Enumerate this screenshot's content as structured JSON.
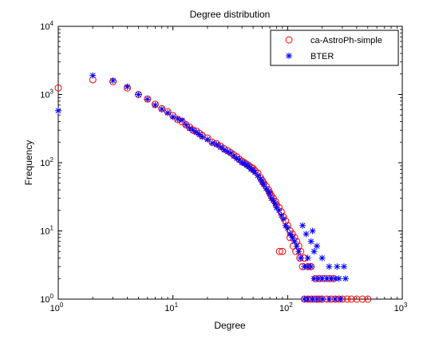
{
  "chart_data": {
    "type": "scatter",
    "title": "Degree distribution",
    "xlabel": "Degree",
    "ylabel": "Frequency",
    "xscale": "log",
    "yscale": "log",
    "xlim": [
      1,
      1000
    ],
    "ylim": [
      1,
      10000
    ],
    "grid": false,
    "legend_position": "top-right",
    "x_ticks": [
      {
        "base": "10",
        "exp": "0",
        "value": 1
      },
      {
        "base": "10",
        "exp": "1",
        "value": 10
      },
      {
        "base": "10",
        "exp": "2",
        "value": 100
      },
      {
        "base": "10",
        "exp": "3",
        "value": 1000
      }
    ],
    "y_ticks": [
      {
        "base": "10",
        "exp": "0",
        "value": 1
      },
      {
        "base": "10",
        "exp": "1",
        "value": 10
      },
      {
        "base": "10",
        "exp": "2",
        "value": 100
      },
      {
        "base": "10",
        "exp": "3",
        "value": 1000
      },
      {
        "base": "10",
        "exp": "4",
        "value": 10000
      }
    ],
    "series": [
      {
        "name": "ca-AstroPh-simple",
        "marker": "circle",
        "color": "#ff0000",
        "points": [
          [
            1,
            1250
          ],
          [
            2,
            1650
          ],
          [
            3,
            1550
          ],
          [
            4,
            1250
          ],
          [
            5,
            1000
          ],
          [
            6,
            860
          ],
          [
            7,
            720
          ],
          [
            8,
            620
          ],
          [
            9,
            560
          ],
          [
            10,
            490
          ],
          [
            11,
            430
          ],
          [
            12,
            400
          ],
          [
            13,
            360
          ],
          [
            14,
            330
          ],
          [
            15,
            300
          ],
          [
            16,
            290
          ],
          [
            17,
            270
          ],
          [
            18,
            250
          ],
          [
            20,
            230
          ],
          [
            22,
            200
          ],
          [
            24,
            190
          ],
          [
            26,
            175
          ],
          [
            28,
            160
          ],
          [
            30,
            150
          ],
          [
            32,
            140
          ],
          [
            34,
            130
          ],
          [
            36,
            122
          ],
          [
            38,
            112
          ],
          [
            40,
            105
          ],
          [
            42,
            100
          ],
          [
            44,
            95
          ],
          [
            46,
            90
          ],
          [
            48,
            85
          ],
          [
            50,
            82
          ],
          [
            52,
            76
          ],
          [
            55,
            70
          ],
          [
            58,
            60
          ],
          [
            60,
            55
          ],
          [
            62,
            50
          ],
          [
            65,
            45
          ],
          [
            68,
            40
          ],
          [
            70,
            36
          ],
          [
            72,
            33
          ],
          [
            75,
            30
          ],
          [
            78,
            27
          ],
          [
            80,
            24
          ],
          [
            84,
            22
          ],
          [
            88,
            19
          ],
          [
            92,
            16
          ],
          [
            96,
            14
          ],
          [
            100,
            12
          ],
          [
            105,
            10
          ],
          [
            110,
            9
          ],
          [
            115,
            8
          ],
          [
            120,
            7
          ],
          [
            125,
            6
          ],
          [
            130,
            5
          ],
          [
            85,
            5
          ],
          [
            90,
            5
          ],
          [
            140,
            4
          ],
          [
            150,
            3
          ],
          [
            160,
            3
          ],
          [
            175,
            2
          ],
          [
            190,
            2
          ],
          [
            210,
            2
          ],
          [
            230,
            2
          ],
          [
            250,
            2
          ],
          [
            140,
            1
          ],
          [
            150,
            1
          ],
          [
            160,
            1
          ],
          [
            170,
            1
          ],
          [
            180,
            1
          ],
          [
            190,
            1
          ],
          [
            200,
            1
          ],
          [
            220,
            1
          ],
          [
            240,
            1
          ],
          [
            260,
            1
          ],
          [
            280,
            1
          ],
          [
            300,
            1
          ],
          [
            330,
            1
          ],
          [
            360,
            1
          ],
          [
            400,
            1
          ],
          [
            450,
            1
          ],
          [
            500,
            1
          ],
          [
            105,
            8
          ],
          [
            112,
            6
          ],
          [
            118,
            5
          ],
          [
            128,
            4
          ],
          [
            135,
            3
          ]
        ]
      },
      {
        "name": "BTER",
        "marker": "star",
        "color": "#0000ff",
        "points": [
          [
            1,
            580
          ],
          [
            2,
            1900
          ],
          [
            3,
            1600
          ],
          [
            4,
            1300
          ],
          [
            5,
            1000
          ],
          [
            6,
            850
          ],
          [
            7,
            700
          ],
          [
            8,
            610
          ],
          [
            9,
            540
          ],
          [
            10,
            470
          ],
          [
            11,
            440
          ],
          [
            12,
            420
          ],
          [
            13,
            360
          ],
          [
            14,
            320
          ],
          [
            15,
            300
          ],
          [
            16,
            280
          ],
          [
            17,
            260
          ],
          [
            18,
            240
          ],
          [
            20,
            220
          ],
          [
            22,
            195
          ],
          [
            24,
            185
          ],
          [
            26,
            170
          ],
          [
            28,
            155
          ],
          [
            30,
            145
          ],
          [
            32,
            138
          ],
          [
            34,
            125
          ],
          [
            36,
            115
          ],
          [
            38,
            110
          ],
          [
            40,
            100
          ],
          [
            42,
            98
          ],
          [
            44,
            92
          ],
          [
            46,
            88
          ],
          [
            48,
            80
          ],
          [
            50,
            78
          ],
          [
            52,
            72
          ],
          [
            55,
            65
          ],
          [
            58,
            58
          ],
          [
            60,
            52
          ],
          [
            62,
            48
          ],
          [
            65,
            42
          ],
          [
            68,
            38
          ],
          [
            70,
            35
          ],
          [
            72,
            30
          ],
          [
            75,
            28
          ],
          [
            78,
            25
          ],
          [
            80,
            22
          ],
          [
            84,
            20
          ],
          [
            88,
            17
          ],
          [
            92,
            15
          ],
          [
            96,
            12
          ],
          [
            100,
            11
          ],
          [
            105,
            9
          ],
          [
            110,
            8
          ],
          [
            115,
            7
          ],
          [
            120,
            6
          ],
          [
            125,
            5
          ],
          [
            130,
            4
          ],
          [
            140,
            3
          ],
          [
            150,
            3
          ],
          [
            160,
            3
          ],
          [
            170,
            2
          ],
          [
            185,
            2
          ],
          [
            200,
            2
          ],
          [
            220,
            2
          ],
          [
            240,
            2
          ],
          [
            260,
            2
          ],
          [
            280,
            2
          ],
          [
            320,
            2
          ],
          [
            140,
            1
          ],
          [
            150,
            1
          ],
          [
            165,
            1
          ],
          [
            180,
            1
          ],
          [
            200,
            1
          ],
          [
            230,
            1
          ],
          [
            260,
            1
          ],
          [
            290,
            1
          ],
          [
            150,
            4
          ],
          [
            170,
            5
          ],
          [
            200,
            4
          ],
          [
            230,
            3
          ],
          [
            270,
            3
          ],
          [
            310,
            3
          ],
          [
            160,
            7
          ],
          [
            180,
            6
          ],
          [
            145,
            9
          ],
          [
            165,
            10
          ],
          [
            135,
            12
          ]
        ]
      }
    ]
  }
}
